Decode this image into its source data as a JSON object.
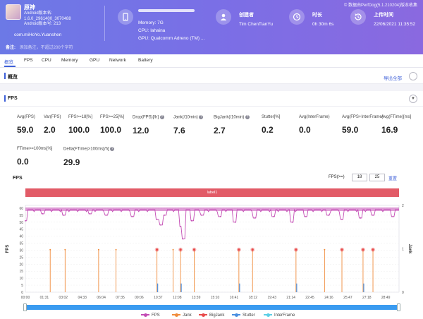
{
  "header": {
    "perfdog_version": "© 数据由PerfDog(5.1.210204)版本收集",
    "app": {
      "name": "原神",
      "version_lines": [
        "Android版本名:",
        "1.6.0_2961400_3070488",
        "Android版本号: 213"
      ],
      "package": "com.miHoYo.Yuanshen"
    },
    "device": {
      "memory": "Memory: 7G",
      "cpu": "CPU: lahaina",
      "gpu": "GPU: Qualcomm Adreno (TM) ..."
    },
    "creator": {
      "label": "创建者",
      "name": "Tim ChenTianYu"
    },
    "duration": {
      "label": "时长",
      "value": "0h 30m 6s"
    },
    "upload": {
      "label": "上传时间",
      "value": "22/06/2021 11:35:52"
    },
    "note": {
      "label": "备注:",
      "placeholder": "添加备注，不超过200个字符"
    }
  },
  "tabs": [
    "概览",
    "FPS",
    "CPU",
    "Memory",
    "GPU",
    "Network",
    "Battery"
  ],
  "overview": {
    "title": "概览",
    "export_label": "导出全部"
  },
  "fps_section": {
    "title": "FPS",
    "metrics_row1": [
      {
        "label": "Avg(FPS)",
        "value": "59.0",
        "help": false
      },
      {
        "label": "Var(FPS)",
        "value": "2.0",
        "help": false
      },
      {
        "label": "FPS>=18[%]",
        "value": "100.0",
        "help": false
      },
      {
        "label": "FPS>=25[%]",
        "value": "100.0",
        "help": false
      },
      {
        "label": "Drop(FPS)[/h]",
        "value": "12.0",
        "help": true
      },
      {
        "label": "Jank(/10min)",
        "value": "7.6",
        "help": true
      },
      {
        "label": "BigJank(/10min)",
        "value": "2.7",
        "help": true
      },
      {
        "label": "Stutter[%]",
        "value": "0.2",
        "help": false
      },
      {
        "label": "Avg(InterFrame)",
        "value": "0.0",
        "help": false
      },
      {
        "label": "Avg(FPS+InterFrame)",
        "value": "59.0",
        "help": false
      },
      {
        "label": "Avg(FTime)[ms]",
        "value": "16.9",
        "help": false
      }
    ],
    "metrics_row2": [
      {
        "label": "FTime>=100ms[%]",
        "value": "0.0",
        "help": false
      },
      {
        "label": "Delta(FTime)>100ms[/h]",
        "value": "29.9",
        "help": true
      }
    ]
  },
  "chart_controls": {
    "title": "FPS",
    "threshold_label": "FPS(>=)",
    "threshold_1": "18",
    "threshold_2": "25",
    "reset_label": "重置",
    "label_bar": "label1"
  },
  "colors": {
    "fps": "#c34bb4",
    "jank": "#f08c3c",
    "bigjank": "#e84a4a",
    "stutter": "#4a8fe0",
    "interframe": "#5ccfe6"
  },
  "chart_data": {
    "type": "line",
    "xlabel": "",
    "ylabel_left": "FPS",
    "ylabel_right": "Jank",
    "x_ticks": [
      "00:00",
      "01:31",
      "03:02",
      "04:33",
      "06:04",
      "07:35",
      "09:06",
      "10:37",
      "12:08",
      "13:39",
      "15:10",
      "16:41",
      "18:12",
      "19:43",
      "21:14",
      "22:45",
      "24:16",
      "25:47",
      "27:18",
      "28:49"
    ],
    "y_ticks_left": [
      0,
      5,
      10,
      15,
      20,
      25,
      30,
      35,
      40,
      45,
      50,
      55,
      60
    ],
    "y_ticks_right": [
      0,
      1,
      2
    ],
    "ylim_left": [
      0,
      62
    ],
    "ylim_right": [
      0,
      2
    ],
    "legend": [
      "FPS",
      "Jank",
      "BigJank",
      "Stutter",
      "InterFrame"
    ],
    "fps_baseline": 59,
    "fps_dips": [
      {
        "t": 0.0,
        "v": 51
      },
      {
        "t": 1.4,
        "v": 56
      },
      {
        "t": 3.1,
        "v": 55
      },
      {
        "t": 5.2,
        "v": 56
      },
      {
        "t": 6.5,
        "v": 55
      },
      {
        "t": 8.6,
        "v": 54
      },
      {
        "t": 10.6,
        "v": 52
      },
      {
        "t": 10.9,
        "v": 48
      },
      {
        "t": 11.2,
        "v": 55
      },
      {
        "t": 12.5,
        "v": 47
      },
      {
        "t": 12.7,
        "v": 38
      },
      {
        "t": 13.4,
        "v": 51
      },
      {
        "t": 14.2,
        "v": 55
      },
      {
        "t": 15.7,
        "v": 54
      },
      {
        "t": 16.9,
        "v": 50
      },
      {
        "t": 18.5,
        "v": 53
      },
      {
        "t": 20.0,
        "v": 54
      },
      {
        "t": 21.5,
        "v": 50
      },
      {
        "t": 22.6,
        "v": 54
      },
      {
        "t": 24.4,
        "v": 55
      },
      {
        "t": 25.5,
        "v": 52
      },
      {
        "t": 27.0,
        "v": 53
      },
      {
        "t": 28.0,
        "v": 55
      },
      {
        "t": 29.6,
        "v": 54
      }
    ],
    "jank": [
      2.0,
      3.2,
      5.9,
      7.3,
      10.6,
      11.9,
      12.5,
      13.6,
      17.2,
      18.3,
      21.8,
      24.1,
      25.5,
      27.2,
      28.0
    ],
    "bigjank": [
      10.6,
      12.5,
      13.6,
      17.2,
      18.3,
      21.8,
      25.5,
      27.2,
      28.0
    ],
    "stutter": [
      10.6,
      12.5,
      17.2,
      21.8,
      27.2
    ],
    "x_max_min": 30.1
  }
}
